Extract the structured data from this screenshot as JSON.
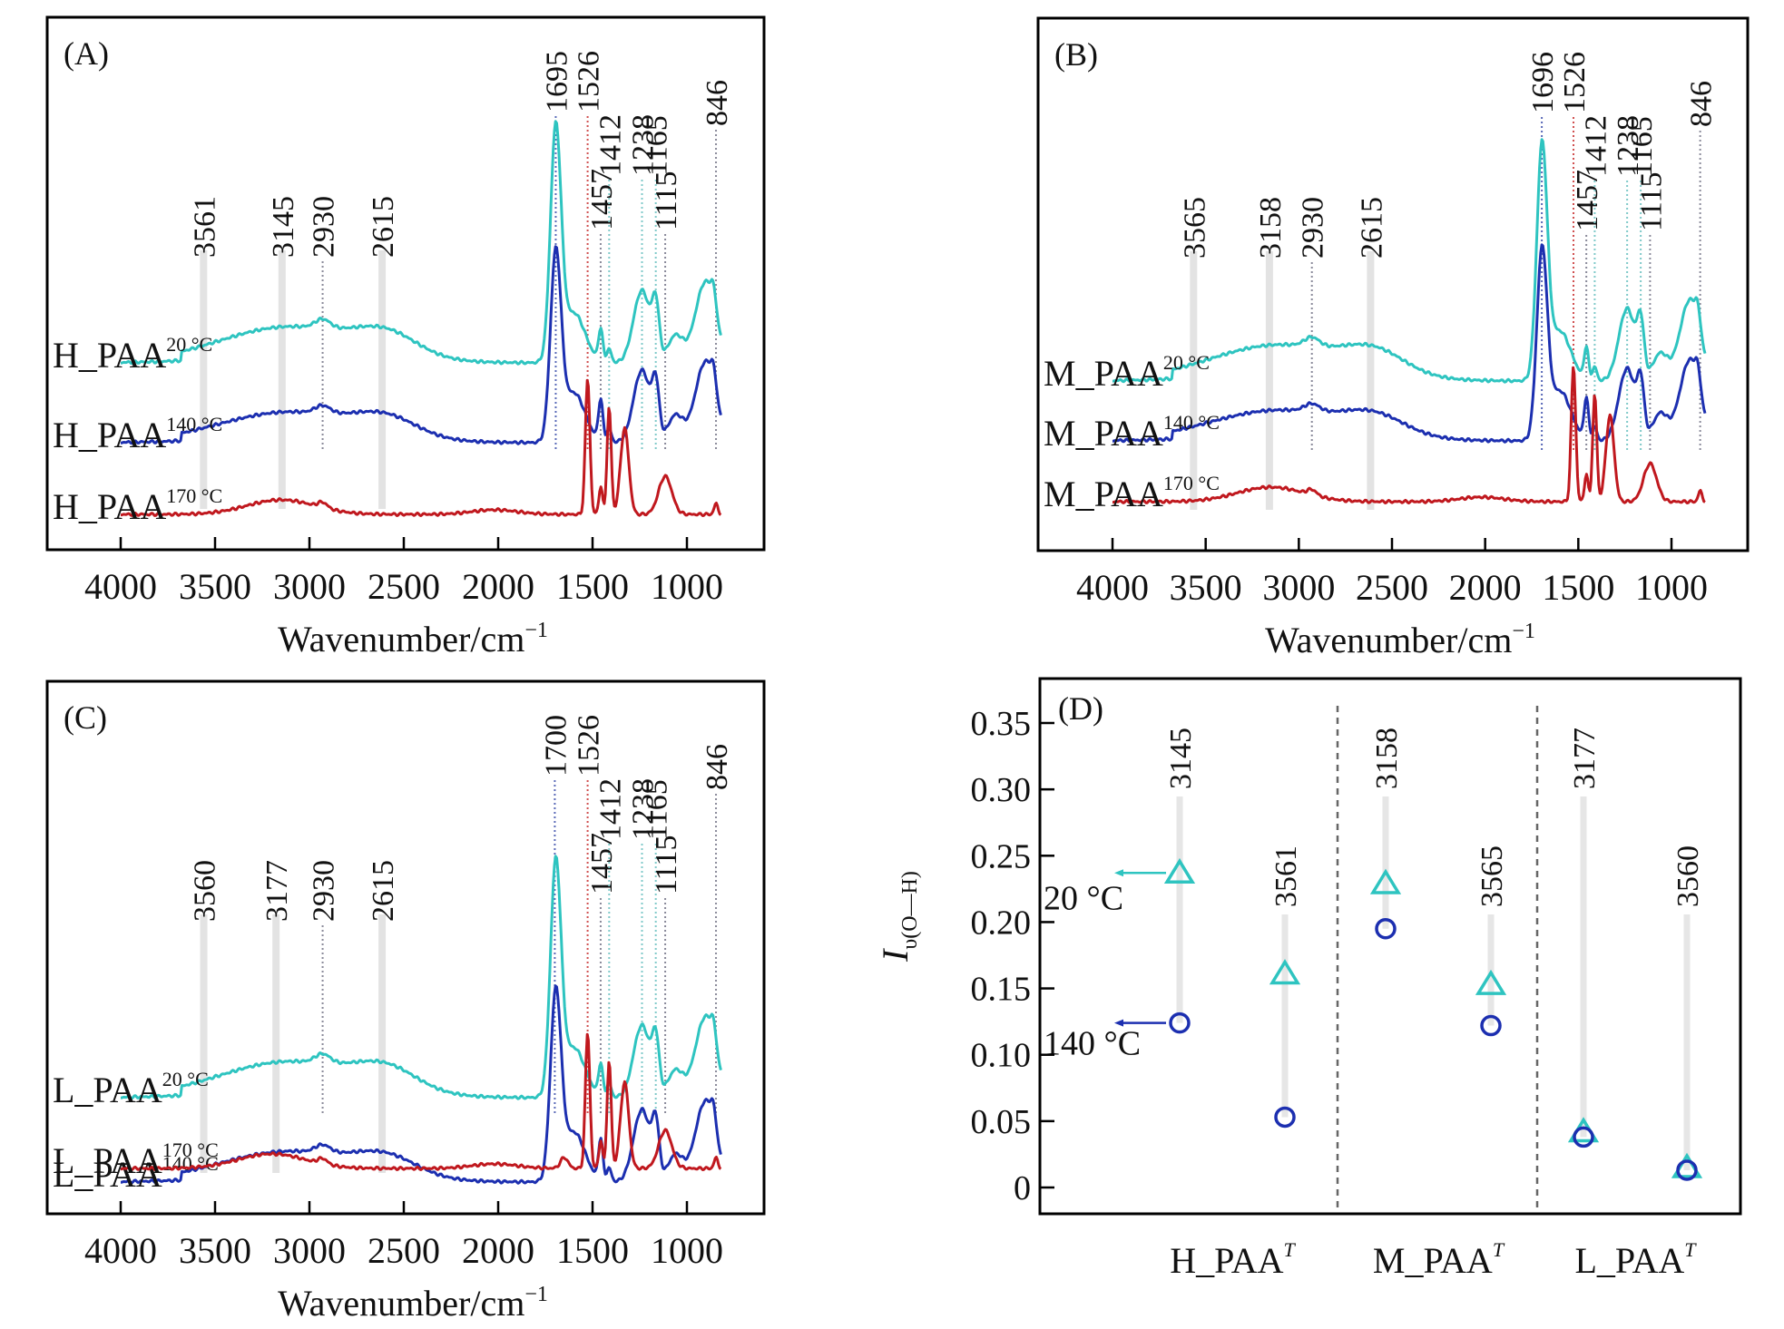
{
  "figure": {
    "colors": {
      "t20": "#2ec4c0",
      "t140": "#1c2fb0",
      "t170": "#c0181e",
      "band": "#e3e3e3",
      "guide": "#8a8a9a",
      "frame": "#000000"
    }
  },
  "chart_data": [
    {
      "panel": "A",
      "type": "line",
      "panel_label": "(A)",
      "xlabel": "Wavenumber/cm",
      "xlabel_sup": "−1",
      "xlim": [
        4000,
        800
      ],
      "x_ticks": [
        4000,
        3500,
        3000,
        2500,
        2000,
        1500,
        1000
      ],
      "y_ticks_shown": false,
      "series": [
        {
          "name": "H_PAA",
          "temp": "20 °C",
          "key": "t20"
        },
        {
          "name": "H_PAA",
          "temp": "140 °C",
          "key": "t140"
        },
        {
          "name": "H_PAA",
          "temp": "170 °C",
          "key": "t170"
        }
      ],
      "bands": [
        3561,
        3145,
        2615
      ],
      "annotations": [
        {
          "label": "3561",
          "x": 3561,
          "style": "band",
          "tier": "low"
        },
        {
          "label": "3145",
          "x": 3145,
          "style": "band",
          "tier": "low"
        },
        {
          "label": "2930",
          "x": 2930,
          "style": "dot",
          "tier": "low"
        },
        {
          "label": "2615",
          "x": 2615,
          "style": "band",
          "tier": "low"
        },
        {
          "label": "1695",
          "x": 1695,
          "style": "dot-blue",
          "tier": "top"
        },
        {
          "label": "1526",
          "x": 1526,
          "style": "dot-red",
          "tier": "top"
        },
        {
          "label": "1457",
          "x": 1457,
          "style": "dot",
          "tier": "mid2"
        },
        {
          "label": "1412",
          "x": 1412,
          "style": "dot-cyan",
          "tier": "mid"
        },
        {
          "label": "1238",
          "x": 1238,
          "style": "dot-cyan",
          "tier": "mid"
        },
        {
          "label": "1165",
          "x": 1165,
          "style": "dot-cyan",
          "tier": "mid"
        },
        {
          "label": "1115",
          "x": 1115,
          "style": "dot",
          "tier": "mid2"
        },
        {
          "label": "846",
          "x": 846,
          "style": "dot",
          "tier": "high"
        }
      ]
    },
    {
      "panel": "B",
      "type": "line",
      "panel_label": "(B)",
      "xlabel": "Wavenumber/cm",
      "xlabel_sup": "−1",
      "xlim": [
        4000,
        800
      ],
      "x_ticks": [
        4000,
        3500,
        3000,
        2500,
        2000,
        1500,
        1000
      ],
      "y_ticks_shown": false,
      "series": [
        {
          "name": "M_PAA",
          "temp": "20 °C",
          "key": "t20"
        },
        {
          "name": "M_PAA",
          "temp": "140 °C",
          "key": "t140"
        },
        {
          "name": "M_PAA",
          "temp": "170 °C",
          "key": "t170"
        }
      ],
      "bands": [
        3565,
        3158,
        2615
      ],
      "annotations": [
        {
          "label": "3565",
          "x": 3565,
          "style": "band",
          "tier": "low"
        },
        {
          "label": "3158",
          "x": 3158,
          "style": "band",
          "tier": "low"
        },
        {
          "label": "2930",
          "x": 2930,
          "style": "dot",
          "tier": "low"
        },
        {
          "label": "2615",
          "x": 2615,
          "style": "band",
          "tier": "low"
        },
        {
          "label": "1696",
          "x": 1696,
          "style": "dot-blue",
          "tier": "top"
        },
        {
          "label": "1526",
          "x": 1526,
          "style": "dot-red",
          "tier": "top"
        },
        {
          "label": "1457",
          "x": 1457,
          "style": "dot",
          "tier": "mid2"
        },
        {
          "label": "1412",
          "x": 1412,
          "style": "dot-cyan",
          "tier": "mid"
        },
        {
          "label": "1238",
          "x": 1238,
          "style": "dot-cyan",
          "tier": "mid"
        },
        {
          "label": "1165",
          "x": 1165,
          "style": "dot-cyan",
          "tier": "mid"
        },
        {
          "label": "1115",
          "x": 1115,
          "style": "dot",
          "tier": "mid2"
        },
        {
          "label": "846",
          "x": 846,
          "style": "dot",
          "tier": "high"
        }
      ]
    },
    {
      "panel": "C",
      "type": "line",
      "panel_label": "(C)",
      "xlabel": "Wavenumber/cm",
      "xlabel_sup": "−1",
      "xlim": [
        4000,
        800
      ],
      "x_ticks": [
        4000,
        3500,
        3000,
        2500,
        2000,
        1500,
        1000
      ],
      "y_ticks_shown": false,
      "series": [
        {
          "name": "L_PAA",
          "temp": "20 °C",
          "key": "t20"
        },
        {
          "name": "L_PAA",
          "temp": "140 °C",
          "key": "t140"
        },
        {
          "name": "L_PAA",
          "temp": "170 °C",
          "key": "t170"
        }
      ],
      "bands": [
        3560,
        3177,
        2615
      ],
      "annotations": [
        {
          "label": "3560",
          "x": 3560,
          "style": "band",
          "tier": "low"
        },
        {
          "label": "3177",
          "x": 3177,
          "style": "band",
          "tier": "low"
        },
        {
          "label": "2930",
          "x": 2930,
          "style": "dot",
          "tier": "low"
        },
        {
          "label": "2615",
          "x": 2615,
          "style": "band",
          "tier": "low"
        },
        {
          "label": "1700",
          "x": 1700,
          "style": "dot-blue",
          "tier": "top"
        },
        {
          "label": "1526",
          "x": 1526,
          "style": "dot-red",
          "tier": "top"
        },
        {
          "label": "1457",
          "x": 1457,
          "style": "dot",
          "tier": "mid2"
        },
        {
          "label": "1412",
          "x": 1412,
          "style": "dot-cyan",
          "tier": "mid"
        },
        {
          "label": "1238",
          "x": 1238,
          "style": "dot-cyan",
          "tier": "mid"
        },
        {
          "label": "1165",
          "x": 1165,
          "style": "dot-cyan",
          "tier": "mid"
        },
        {
          "label": "1115",
          "x": 1115,
          "style": "dot",
          "tier": "mid2"
        },
        {
          "label": "846",
          "x": 846,
          "style": "dot",
          "tier": "high"
        }
      ]
    },
    {
      "panel": "D",
      "type": "scatter",
      "panel_label": "(D)",
      "ylabel": "I",
      "ylabel_sub": "υ(O—H)",
      "ylim": [
        -0.02,
        0.38
      ],
      "y_ticks": [
        0,
        0.05,
        0.1,
        0.15,
        0.2,
        0.25,
        0.3,
        0.35
      ],
      "y_tick_labels": [
        "0",
        "0.05",
        "0.10",
        "0.15",
        "0.20",
        "0.25",
        "0.30",
        "0.35"
      ],
      "groups": [
        {
          "label": "H_PAA",
          "label_sup": "T",
          "points": [
            {
              "wavenumber": "3145",
              "t20": 0.237,
              "t140": 0.124
            },
            {
              "wavenumber": "3561",
              "t20": 0.161,
              "t140": 0.053
            }
          ]
        },
        {
          "label": "M_PAA",
          "label_sup": "T",
          "points": [
            {
              "wavenumber": "3158",
              "t20": 0.229,
              "t140": 0.195
            },
            {
              "wavenumber": "3565",
              "t20": 0.153,
              "t140": 0.122
            }
          ]
        },
        {
          "label": "L_PAA",
          "label_sup": "T",
          "points": [
            {
              "wavenumber": "3177",
              "t20": 0.042,
              "t140": 0.038
            },
            {
              "wavenumber": "3560",
              "t20": 0.015,
              "t140": 0.013
            }
          ]
        }
      ],
      "legend": [
        {
          "label": "20 °C",
          "marker": "triangle",
          "key": "t20"
        },
        {
          "label": "140 °C",
          "marker": "circle",
          "key": "t140"
        }
      ]
    }
  ]
}
